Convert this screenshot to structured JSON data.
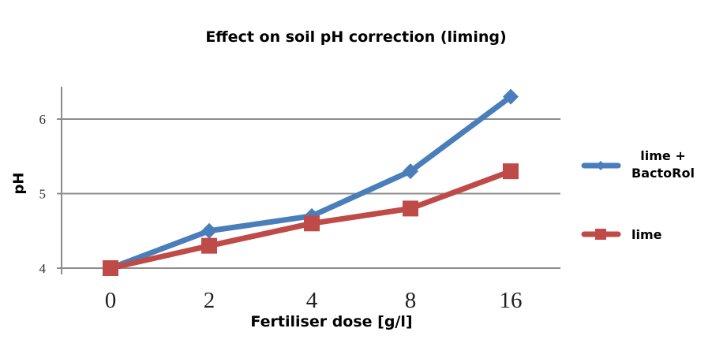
{
  "chart_data": {
    "type": "line",
    "title": "Effect on soil pH correction (liming)",
    "xlabel": "Fertiliser dose [g/l]",
    "ylabel": "pH",
    "categories": [
      "0",
      "2",
      "4",
      "8",
      "16"
    ],
    "ylim": [
      4,
      6.5
    ],
    "yticks": [
      "4",
      "5",
      "6"
    ],
    "grid": true,
    "legend_position": "right",
    "series": [
      {
        "name": "lime + BactoRol",
        "name_lines": [
          "lime +",
          "BactoRol"
        ],
        "color": "#4a7ebb",
        "marker": "diamond",
        "values": [
          4.0,
          4.5,
          4.7,
          5.3,
          6.3
        ]
      },
      {
        "name": "lime",
        "name_lines": [
          "lime"
        ],
        "color": "#be4b48",
        "marker": "square",
        "values": [
          4.0,
          4.3,
          4.6,
          4.8,
          5.3
        ]
      }
    ]
  }
}
